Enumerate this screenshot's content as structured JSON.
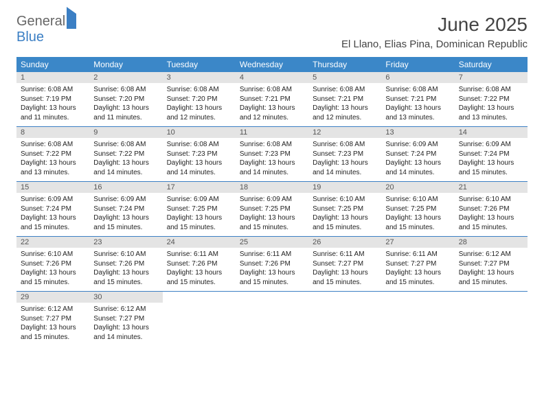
{
  "logo": {
    "general": "General",
    "blue": "Blue"
  },
  "header": {
    "month_title": "June 2025",
    "location": "El Llano, Elias Pina, Dominican Republic"
  },
  "weekdays": [
    "Sunday",
    "Monday",
    "Tuesday",
    "Wednesday",
    "Thursday",
    "Friday",
    "Saturday"
  ],
  "colors": {
    "header_bg": "#3b87c8",
    "header_text": "#ffffff",
    "daynum_bg": "#e4e4e4",
    "rule": "#3b7fc4",
    "text": "#222222",
    "logo_blue": "#3b7fc4"
  },
  "typography": {
    "month_title_fontsize": 28,
    "location_fontsize": 15,
    "weekday_fontsize": 12,
    "daynum_fontsize": 11,
    "body_fontsize": 10
  },
  "days": [
    {
      "n": "1",
      "sunrise": "Sunrise: 6:08 AM",
      "sunset": "Sunset: 7:19 PM",
      "d1": "Daylight: 13 hours",
      "d2": "and 11 minutes."
    },
    {
      "n": "2",
      "sunrise": "Sunrise: 6:08 AM",
      "sunset": "Sunset: 7:20 PM",
      "d1": "Daylight: 13 hours",
      "d2": "and 11 minutes."
    },
    {
      "n": "3",
      "sunrise": "Sunrise: 6:08 AM",
      "sunset": "Sunset: 7:20 PM",
      "d1": "Daylight: 13 hours",
      "d2": "and 12 minutes."
    },
    {
      "n": "4",
      "sunrise": "Sunrise: 6:08 AM",
      "sunset": "Sunset: 7:21 PM",
      "d1": "Daylight: 13 hours",
      "d2": "and 12 minutes."
    },
    {
      "n": "5",
      "sunrise": "Sunrise: 6:08 AM",
      "sunset": "Sunset: 7:21 PM",
      "d1": "Daylight: 13 hours",
      "d2": "and 12 minutes."
    },
    {
      "n": "6",
      "sunrise": "Sunrise: 6:08 AM",
      "sunset": "Sunset: 7:21 PM",
      "d1": "Daylight: 13 hours",
      "d2": "and 13 minutes."
    },
    {
      "n": "7",
      "sunrise": "Sunrise: 6:08 AM",
      "sunset": "Sunset: 7:22 PM",
      "d1": "Daylight: 13 hours",
      "d2": "and 13 minutes."
    },
    {
      "n": "8",
      "sunrise": "Sunrise: 6:08 AM",
      "sunset": "Sunset: 7:22 PM",
      "d1": "Daylight: 13 hours",
      "d2": "and 13 minutes."
    },
    {
      "n": "9",
      "sunrise": "Sunrise: 6:08 AM",
      "sunset": "Sunset: 7:22 PM",
      "d1": "Daylight: 13 hours",
      "d2": "and 14 minutes."
    },
    {
      "n": "10",
      "sunrise": "Sunrise: 6:08 AM",
      "sunset": "Sunset: 7:23 PM",
      "d1": "Daylight: 13 hours",
      "d2": "and 14 minutes."
    },
    {
      "n": "11",
      "sunrise": "Sunrise: 6:08 AM",
      "sunset": "Sunset: 7:23 PM",
      "d1": "Daylight: 13 hours",
      "d2": "and 14 minutes."
    },
    {
      "n": "12",
      "sunrise": "Sunrise: 6:08 AM",
      "sunset": "Sunset: 7:23 PM",
      "d1": "Daylight: 13 hours",
      "d2": "and 14 minutes."
    },
    {
      "n": "13",
      "sunrise": "Sunrise: 6:09 AM",
      "sunset": "Sunset: 7:24 PM",
      "d1": "Daylight: 13 hours",
      "d2": "and 14 minutes."
    },
    {
      "n": "14",
      "sunrise": "Sunrise: 6:09 AM",
      "sunset": "Sunset: 7:24 PM",
      "d1": "Daylight: 13 hours",
      "d2": "and 15 minutes."
    },
    {
      "n": "15",
      "sunrise": "Sunrise: 6:09 AM",
      "sunset": "Sunset: 7:24 PM",
      "d1": "Daylight: 13 hours",
      "d2": "and 15 minutes."
    },
    {
      "n": "16",
      "sunrise": "Sunrise: 6:09 AM",
      "sunset": "Sunset: 7:24 PM",
      "d1": "Daylight: 13 hours",
      "d2": "and 15 minutes."
    },
    {
      "n": "17",
      "sunrise": "Sunrise: 6:09 AM",
      "sunset": "Sunset: 7:25 PM",
      "d1": "Daylight: 13 hours",
      "d2": "and 15 minutes."
    },
    {
      "n": "18",
      "sunrise": "Sunrise: 6:09 AM",
      "sunset": "Sunset: 7:25 PM",
      "d1": "Daylight: 13 hours",
      "d2": "and 15 minutes."
    },
    {
      "n": "19",
      "sunrise": "Sunrise: 6:10 AM",
      "sunset": "Sunset: 7:25 PM",
      "d1": "Daylight: 13 hours",
      "d2": "and 15 minutes."
    },
    {
      "n": "20",
      "sunrise": "Sunrise: 6:10 AM",
      "sunset": "Sunset: 7:25 PM",
      "d1": "Daylight: 13 hours",
      "d2": "and 15 minutes."
    },
    {
      "n": "21",
      "sunrise": "Sunrise: 6:10 AM",
      "sunset": "Sunset: 7:26 PM",
      "d1": "Daylight: 13 hours",
      "d2": "and 15 minutes."
    },
    {
      "n": "22",
      "sunrise": "Sunrise: 6:10 AM",
      "sunset": "Sunset: 7:26 PM",
      "d1": "Daylight: 13 hours",
      "d2": "and 15 minutes."
    },
    {
      "n": "23",
      "sunrise": "Sunrise: 6:10 AM",
      "sunset": "Sunset: 7:26 PM",
      "d1": "Daylight: 13 hours",
      "d2": "and 15 minutes."
    },
    {
      "n": "24",
      "sunrise": "Sunrise: 6:11 AM",
      "sunset": "Sunset: 7:26 PM",
      "d1": "Daylight: 13 hours",
      "d2": "and 15 minutes."
    },
    {
      "n": "25",
      "sunrise": "Sunrise: 6:11 AM",
      "sunset": "Sunset: 7:26 PM",
      "d1": "Daylight: 13 hours",
      "d2": "and 15 minutes."
    },
    {
      "n": "26",
      "sunrise": "Sunrise: 6:11 AM",
      "sunset": "Sunset: 7:27 PM",
      "d1": "Daylight: 13 hours",
      "d2": "and 15 minutes."
    },
    {
      "n": "27",
      "sunrise": "Sunrise: 6:11 AM",
      "sunset": "Sunset: 7:27 PM",
      "d1": "Daylight: 13 hours",
      "d2": "and 15 minutes."
    },
    {
      "n": "28",
      "sunrise": "Sunrise: 6:12 AM",
      "sunset": "Sunset: 7:27 PM",
      "d1": "Daylight: 13 hours",
      "d2": "and 15 minutes."
    },
    {
      "n": "29",
      "sunrise": "Sunrise: 6:12 AM",
      "sunset": "Sunset: 7:27 PM",
      "d1": "Daylight: 13 hours",
      "d2": "and 15 minutes."
    },
    {
      "n": "30",
      "sunrise": "Sunrise: 6:12 AM",
      "sunset": "Sunset: 7:27 PM",
      "d1": "Daylight: 13 hours",
      "d2": "and 14 minutes."
    }
  ]
}
